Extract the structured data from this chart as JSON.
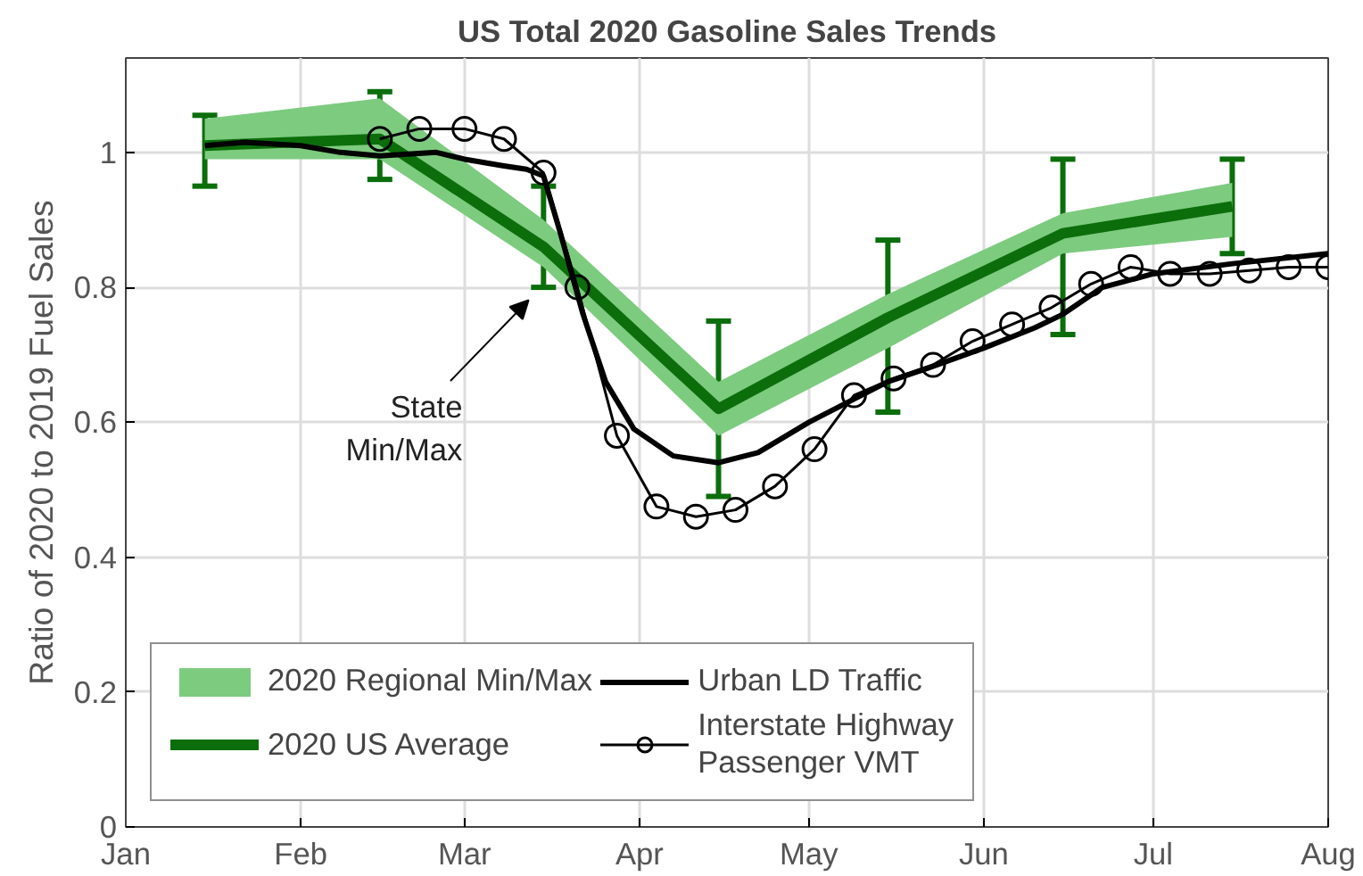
{
  "chart_data": {
    "type": "line",
    "title": "US Total 2020 Gasoline Sales Trends",
    "ylabel": "Ratio of 2020 to 2019 Fuel Sales",
    "xlim": [
      "2020-01-01",
      "2020-08-01"
    ],
    "xticks": [
      {
        "value": "2020-01-01",
        "label": "Jan"
      },
      {
        "value": "2020-02-01",
        "label": "Feb"
      },
      {
        "value": "2020-03-01",
        "label": "Mar"
      },
      {
        "value": "2020-04-01",
        "label": "Apr"
      },
      {
        "value": "2020-05-01",
        "label": "May"
      },
      {
        "value": "2020-06-01",
        "label": "Jun"
      },
      {
        "value": "2020-07-01",
        "label": "Jul"
      },
      {
        "value": "2020-08-01",
        "label": "Aug"
      }
    ],
    "ylim": [
      0,
      1.14
    ],
    "yticks": [
      0,
      0.2,
      0.4,
      0.6,
      0.8,
      1
    ],
    "grid": true,
    "legend": "bottom left",
    "annotations": [
      "State Min/Max"
    ],
    "series": [
      {
        "type": "area",
        "name": "2020 Regional Min/Max",
        "color": "#7dcb7f"
      },
      {
        "name": "2020 US Average",
        "color": "#0b6e0b",
        "marker": "none",
        "x": [
          "2020-01-15",
          "2020-02-15",
          "2020-03-15",
          "2020-04-15",
          "2020-05-15",
          "2020-06-15",
          "2020-07-15"
        ],
        "values": [
          1.01,
          1.02,
          0.86,
          0.62,
          0.755,
          0.88,
          0.92
        ],
        "lower": [
          0.99,
          0.99,
          0.83,
          0.58,
          0.71,
          0.85,
          0.875
        ],
        "upper": [
          1.05,
          1.08,
          0.9,
          0.66,
          0.79,
          0.91,
          0.955
        ],
        "errors": [
          [
            0.95,
            1.055
          ],
          [
            0.96,
            1.09
          ],
          [
            0.8,
            0.95
          ],
          [
            0.49,
            0.75
          ],
          [
            0.615,
            0.87
          ],
          [
            0.73,
            0.99
          ],
          [
            0.85,
            0.99
          ]
        ]
      },
      {
        "name": "Urban LD Traffic",
        "color": "#000000",
        "marker": "none",
        "x": [
          "2020-01-15",
          "2020-01-22",
          "2020-02-01",
          "2020-02-08",
          "2020-02-15",
          "2020-02-25",
          "2020-03-01",
          "2020-03-08",
          "2020-03-12",
          "2020-03-15",
          "2020-03-18",
          "2020-03-22",
          "2020-03-26",
          "2020-03-31",
          "2020-04-07",
          "2020-04-15",
          "2020-04-22",
          "2020-05-01",
          "2020-05-08",
          "2020-05-15",
          "2020-05-22",
          "2020-06-01",
          "2020-06-10",
          "2020-06-15",
          "2020-06-22",
          "2020-07-01",
          "2020-07-15",
          "2020-08-01"
        ],
        "values": [
          1.01,
          1.015,
          1.01,
          1.0,
          0.995,
          1.0,
          0.99,
          0.98,
          0.975,
          0.965,
          0.88,
          0.76,
          0.66,
          0.59,
          0.55,
          0.54,
          0.555,
          0.6,
          0.63,
          0.66,
          0.68,
          0.71,
          0.74,
          0.76,
          0.8,
          0.82,
          0.835,
          0.85
        ]
      },
      {
        "name": "Interstate Highway Passenger VMT",
        "color": "#000000",
        "marker": "circle",
        "x": [
          "2020-02-15",
          "2020-02-22",
          "2020-03-01",
          "2020-03-08",
          "2020-03-15",
          "2020-03-21",
          "2020-03-28",
          "2020-04-04",
          "2020-04-11",
          "2020-04-18",
          "2020-04-25",
          "2020-05-02",
          "2020-05-09",
          "2020-05-16",
          "2020-05-23",
          "2020-05-30",
          "2020-06-06",
          "2020-06-13",
          "2020-06-20",
          "2020-06-27",
          "2020-07-04",
          "2020-07-11",
          "2020-07-18",
          "2020-07-25",
          "2020-08-01"
        ],
        "values": [
          1.02,
          1.035,
          1.035,
          1.02,
          0.97,
          0.8,
          0.58,
          0.475,
          0.46,
          0.47,
          0.505,
          0.56,
          0.64,
          0.665,
          0.685,
          0.72,
          0.745,
          0.77,
          0.805,
          0.83,
          0.82,
          0.82,
          0.825,
          0.83,
          0.83
        ]
      }
    ]
  }
}
